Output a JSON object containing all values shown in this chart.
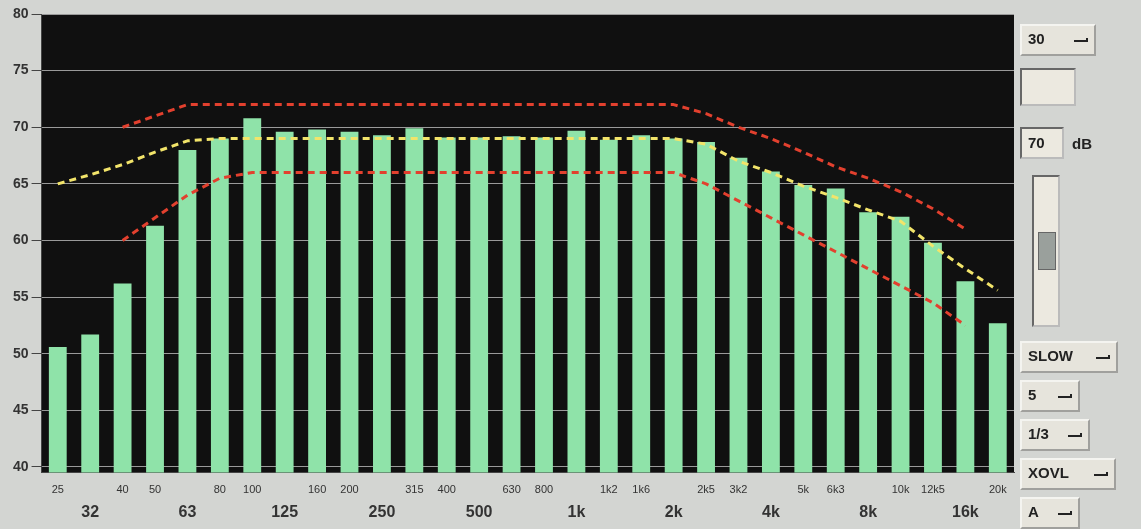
{
  "chart_data": {
    "type": "bar",
    "categories": [
      "25",
      "32",
      "40",
      "50",
      "63",
      "80",
      "100",
      "125",
      "160",
      "200",
      "250",
      "315",
      "400",
      "500",
      "630",
      "800",
      "1k",
      "1k2",
      "1k6",
      "2k",
      "2k5",
      "3k2",
      "4k",
      "5k",
      "6k3",
      "8k",
      "10k",
      "12k5",
      "16k",
      "20k"
    ],
    "series": [
      {
        "color": "#8fe3a9",
        "values": [
          50.6,
          51.7,
          56.2,
          61.3,
          68,
          69,
          70.8,
          69.6,
          69.8,
          69.6,
          69.3,
          69.9,
          69.1,
          69.1,
          69.2,
          69.1,
          69.7,
          68.9,
          69.3,
          69,
          68.7,
          67.3,
          66.1,
          64.9,
          64.6,
          62.5,
          62.1,
          59.8,
          56.4,
          52.7
        ]
      },
      {
        "type": "line",
        "color": "#e2402e",
        "line_style": "dashed",
        "values": [
          null,
          null,
          70,
          71,
          72,
          72,
          72,
          72,
          72,
          72,
          72,
          72,
          72,
          72,
          72,
          72,
          72,
          72,
          72,
          72,
          71.2,
          70,
          69,
          67.8,
          66.5,
          65.5,
          64.3,
          62.8,
          61,
          null
        ]
      },
      {
        "type": "line",
        "color": "#f2e46a",
        "line_style": "dashed",
        "values": [
          65,
          65.8,
          66.7,
          67.8,
          68.8,
          69,
          69,
          69,
          69,
          69,
          69,
          69,
          69,
          69,
          69,
          69,
          69,
          69,
          69,
          69,
          68.5,
          67,
          66,
          64.8,
          63.8,
          62.7,
          61.7,
          59.5,
          57.5,
          55.6
        ]
      },
      {
        "type": "line",
        "color": "#e2402e",
        "line_style": "dashed",
        "values": [
          null,
          null,
          60,
          62,
          64,
          65.5,
          66,
          66,
          66,
          66,
          66,
          66,
          66,
          66,
          66,
          66,
          66,
          66,
          66,
          66,
          65,
          63.5,
          62,
          60.5,
          59,
          57.5,
          56,
          54.5,
          52.5,
          null
        ]
      }
    ],
    "ylim": [
      39.5,
      80
    ],
    "yticks": [
      40,
      45,
      50,
      55,
      60,
      65,
      70,
      75,
      80
    ],
    "grid": "y",
    "legend": false,
    "marker": "none",
    "annotations": [
      "30",
      "70",
      "dB",
      "SLOW",
      "5",
      "1/3",
      "XOVL",
      "A"
    ]
  }
}
